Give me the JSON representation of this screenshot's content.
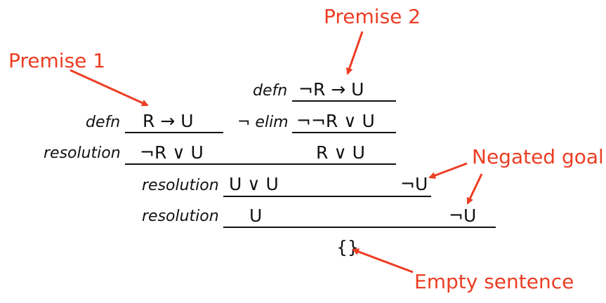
{
  "proof": {
    "rules": {
      "defn_1": "defn",
      "defn_2": "defn",
      "not_elim": "¬ elim",
      "resolution_1": "resolution",
      "resolution_2": "resolution",
      "resolution_3": "resolution"
    },
    "formulas": {
      "premise1": "R → U",
      "premise2": "¬R → U",
      "not_not_r_or_u": "¬¬R ∨ U",
      "not_r_or_u": "¬R ∨ U",
      "r_or_u": "R ∨ U",
      "u_or_u": "U ∨ U",
      "neg_u_1": "¬U",
      "u": "U",
      "neg_u_2": "¬U",
      "empty": "{}"
    }
  },
  "annotations": {
    "premise_1": "Premise 1",
    "premise_2": "Premise 2",
    "negated_goal": "Negated goal",
    "empty_sentence": "Empty sentence"
  },
  "colors": {
    "annotation": "#ec3d23",
    "text": "#111111"
  }
}
